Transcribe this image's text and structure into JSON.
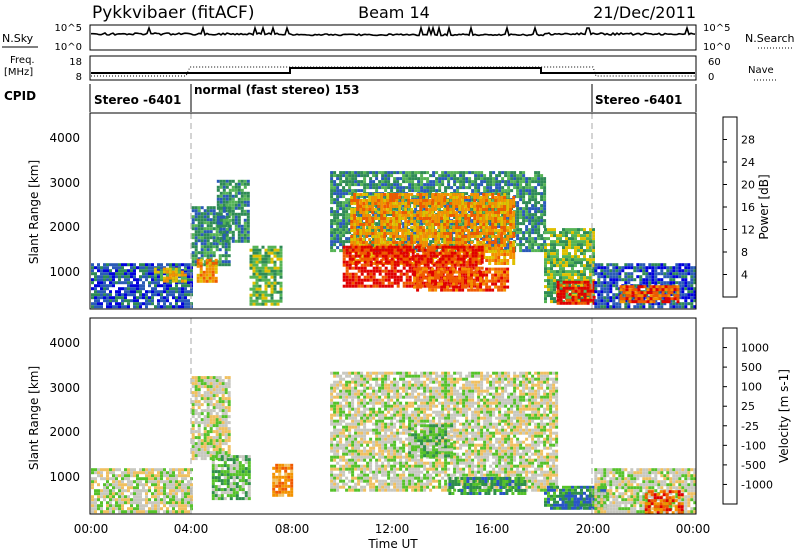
{
  "header": {
    "title": "Pykkvibaer (fitACF)",
    "beam": "Beam 14",
    "date": "21/Dec/2011"
  },
  "noise_panel": {
    "left_label": "N.Sky",
    "left_ticks": [
      "10^5",
      "10^0"
    ],
    "right_label": "N.Search",
    "right_ticks": [
      "10^5",
      "10^0"
    ]
  },
  "freq_panel": {
    "left_label": "Freq.",
    "left_unit": "[MHz]",
    "left_ticks": [
      "18",
      "8"
    ],
    "right_label": "Nave",
    "right_ticks": [
      "60",
      "0"
    ]
  },
  "cpid_panel": {
    "label": "CPID",
    "segments": [
      {
        "label": "Stereo -6401",
        "start_h": 0,
        "end_h": 4
      },
      {
        "label": "normal (fast stereo) 153",
        "start_h": 4,
        "end_h": 20
      },
      {
        "label": "Stereo -6401",
        "start_h": 20,
        "end_h": 24
      }
    ]
  },
  "time_axis": {
    "label": "Time UT",
    "ticks": [
      "00:00",
      "04:00",
      "08:00",
      "12:00",
      "16:00",
      "20:00",
      "00:00"
    ]
  },
  "colors": {
    "power": [
      "#0000dd",
      "#2a5ab8",
      "#2e8a55",
      "#55b455",
      "#e0c000",
      "#f39200",
      "#f05a00",
      "#e00000"
    ],
    "velocity": [
      "#e00000",
      "#f05a00",
      "#f39200",
      "#f0c060",
      "#c8c8c0",
      "#55c22a",
      "#2f8f4a",
      "#2a55c8"
    ]
  },
  "chart_data": [
    {
      "type": "heatmap",
      "title": "Power",
      "xlabel": "Time UT",
      "ylabel": "Slant Range [km]",
      "x_range_hours": [
        0,
        24
      ],
      "y_range_km": [
        180,
        4600
      ],
      "y_ticks": [
        "1000",
        "2000",
        "3000",
        "4000"
      ],
      "colorbar": {
        "label": "Power [dB]",
        "ticks": [
          "4",
          "8",
          "12",
          "16",
          "20",
          "24",
          "28"
        ],
        "range": [
          0,
          32
        ]
      },
      "regions": [
        {
          "start_h": 0.0,
          "end_h": 4.0,
          "r_min": 180,
          "r_max": 1200,
          "level": 1
        },
        {
          "start_h": 2.5,
          "end_h": 3.8,
          "r_min": 800,
          "r_max": 1100,
          "level": 4
        },
        {
          "start_h": 4.0,
          "end_h": 5.5,
          "r_min": 1200,
          "r_max": 2500,
          "level": 2
        },
        {
          "start_h": 4.2,
          "end_h": 5.0,
          "r_min": 800,
          "r_max": 1300,
          "level": 5
        },
        {
          "start_h": 6.3,
          "end_h": 7.6,
          "r_min": 300,
          "r_max": 1600,
          "level": 3
        },
        {
          "start_h": 5.0,
          "end_h": 6.3,
          "r_min": 1700,
          "r_max": 3100,
          "level": 2
        },
        {
          "start_h": 9.5,
          "end_h": 18.0,
          "r_min": 1500,
          "r_max": 3300,
          "level": 2
        },
        {
          "start_h": 10.3,
          "end_h": 16.8,
          "r_min": 1200,
          "r_max": 2800,
          "level": 5
        },
        {
          "start_h": 10.0,
          "end_h": 15.5,
          "r_min": 700,
          "r_max": 1600,
          "level": 7
        },
        {
          "start_h": 12.8,
          "end_h": 16.5,
          "r_min": 600,
          "r_max": 1100,
          "level": 6
        },
        {
          "start_h": 18.0,
          "end_h": 20.0,
          "r_min": 300,
          "r_max": 2000,
          "level": 3
        },
        {
          "start_h": 18.5,
          "end_h": 20.0,
          "r_min": 300,
          "r_max": 800,
          "level": 7
        },
        {
          "start_h": 20.0,
          "end_h": 24.0,
          "r_min": 180,
          "r_max": 1200,
          "level": 1
        },
        {
          "start_h": 21.0,
          "end_h": 23.3,
          "r_min": 300,
          "r_max": 700,
          "level": 6
        }
      ]
    },
    {
      "type": "heatmap",
      "title": "Velocity",
      "xlabel": "Time UT",
      "ylabel": "Slant Range [km]",
      "x_range_hours": [
        0,
        24
      ],
      "y_range_km": [
        180,
        4600
      ],
      "y_ticks": [
        "1000",
        "2000",
        "3000",
        "4000"
      ],
      "colorbar": {
        "label": "Velocity [m s-1]",
        "ticks": [
          "-1000",
          "-500",
          "-100",
          "-25",
          "25",
          "100",
          "500",
          "1000"
        ]
      },
      "regions": [
        {
          "start_h": 0.0,
          "end_h": 4.0,
          "r_min": 180,
          "r_max": 1200,
          "level": 4
        },
        {
          "start_h": 4.0,
          "end_h": 5.5,
          "r_min": 1400,
          "r_max": 3300,
          "level": 4
        },
        {
          "start_h": 4.8,
          "end_h": 6.3,
          "r_min": 500,
          "r_max": 1500,
          "level": 5
        },
        {
          "start_h": 7.2,
          "end_h": 8.0,
          "r_min": 600,
          "r_max": 1300,
          "level": 2
        },
        {
          "start_h": 9.5,
          "end_h": 18.5,
          "r_min": 700,
          "r_max": 3400,
          "level": 4
        },
        {
          "start_h": 12.6,
          "end_h": 14.3,
          "r_min": 1500,
          "r_max": 2200,
          "level": 5
        },
        {
          "start_h": 14.2,
          "end_h": 17.2,
          "r_min": 600,
          "r_max": 1000,
          "level": 6
        },
        {
          "start_h": 18.0,
          "end_h": 20.5,
          "r_min": 300,
          "r_max": 800,
          "level": 6
        },
        {
          "start_h": 18.7,
          "end_h": 20.0,
          "r_min": 300,
          "r_max": 600,
          "level": 7
        },
        {
          "start_h": 20.0,
          "end_h": 24.0,
          "r_min": 180,
          "r_max": 1200,
          "level": 4
        },
        {
          "start_h": 22.0,
          "end_h": 23.5,
          "r_min": 200,
          "r_max": 700,
          "level": 1
        }
      ]
    }
  ]
}
